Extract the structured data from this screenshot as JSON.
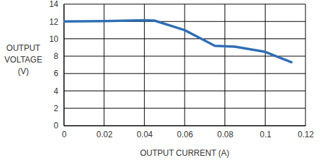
{
  "chart_data": {
    "type": "line",
    "xlabel": "OUTPUT CURRENT (A)",
    "ylabel": [
      "OUTPUT",
      "VOLTAGE",
      "(V)"
    ],
    "x": [
      0,
      0.02,
      0.04,
      0.045,
      0.06,
      0.075,
      0.085,
      0.1,
      0.113
    ],
    "values": [
      12.0,
      12.05,
      12.15,
      12.1,
      11.0,
      9.2,
      9.1,
      8.5,
      7.3
    ],
    "color": "#2e6db4",
    "xlim": [
      0,
      0.12
    ],
    "xticks": [
      0,
      0.02,
      0.04,
      0.06,
      0.08,
      0.1,
      0.12
    ],
    "ylim": [
      0,
      14
    ],
    "yticks": [
      0,
      2,
      4,
      6,
      8,
      10,
      12,
      14
    ],
    "grid": true
  }
}
